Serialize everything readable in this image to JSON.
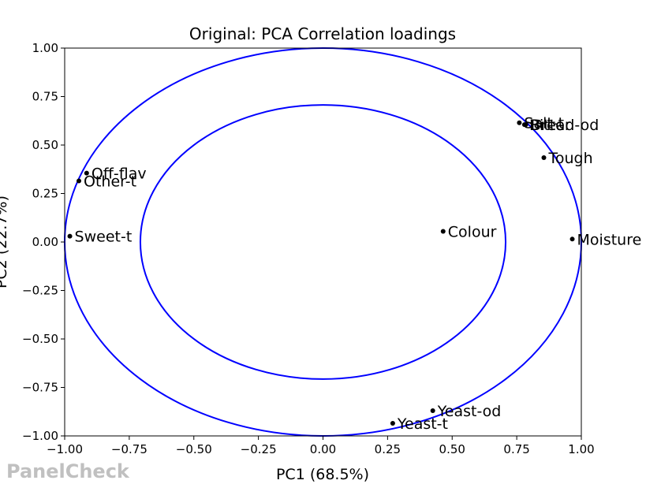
{
  "watermark": "PanelCheck",
  "chart_data": {
    "type": "scatter",
    "title": "Original: PCA Correlation loadings",
    "xlabel": "PC1 (68.5%)",
    "ylabel": "PC2 (22.7%)",
    "xlim": [
      -1.0,
      1.0
    ],
    "ylim": [
      -1.0,
      1.0
    ],
    "xticks": [
      "−1.00",
      "−0.75",
      "−0.50",
      "−0.25",
      "0.00",
      "0.25",
      "0.50",
      "0.75",
      "1.00"
    ],
    "yticks": [
      "1.00",
      "0.75",
      "0.50",
      "0.25",
      "0.00",
      "−0.25",
      "−0.50",
      "−0.75",
      "−1.00"
    ],
    "xtick_values": [
      -1.0,
      -0.75,
      -0.5,
      -0.25,
      0.0,
      0.25,
      0.5,
      0.75,
      1.0
    ],
    "ytick_values": [
      1.0,
      0.75,
      0.5,
      0.25,
      0.0,
      -0.25,
      -0.5,
      -0.75,
      -1.0
    ],
    "circles": [
      {
        "radius": 1.0,
        "color": "#0000ff"
      },
      {
        "radius": 0.707,
        "color": "#0000ff"
      }
    ],
    "grid": false,
    "point_color": "#000000",
    "points": [
      {
        "label": "Salt-t",
        "x": 0.76,
        "y": 0.615
      },
      {
        "label": "Bitter",
        "x": 0.78,
        "y": 0.605
      },
      {
        "label": "Bread-od",
        "x": 0.785,
        "y": 0.605
      },
      {
        "label": "Tough",
        "x": 0.855,
        "y": 0.435
      },
      {
        "label": "Moisture",
        "x": 0.965,
        "y": 0.015
      },
      {
        "label": "Colour",
        "x": 0.465,
        "y": 0.055
      },
      {
        "label": "Off-flav",
        "x": -0.915,
        "y": 0.355
      },
      {
        "label": "Other-t",
        "x": -0.945,
        "y": 0.315
      },
      {
        "label": "Sweet-t",
        "x": -0.98,
        "y": 0.03
      },
      {
        "label": "Yeast-od",
        "x": 0.425,
        "y": -0.87
      },
      {
        "label": "Yeast-t",
        "x": 0.27,
        "y": -0.935
      }
    ]
  }
}
